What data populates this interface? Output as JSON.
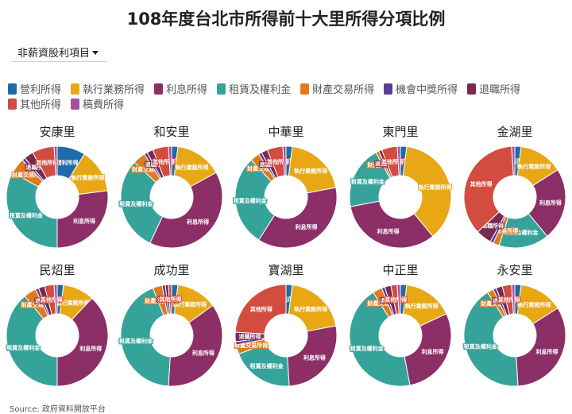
{
  "page": {
    "title": "108年度台北市所得前十大里所得分項比例",
    "dropdown_label": "非薪資股利項目",
    "dropdown_icon": "caret-down-icon",
    "source": "Source: 政府資料開放平台"
  },
  "categories": [
    {
      "name": "營利所得",
      "color": "#1e6ba8"
    },
    {
      "name": "執行業務所得",
      "color": "#e8a816"
    },
    {
      "name": "利息所得",
      "color": "#8c2f66"
    },
    {
      "name": "租賃及權利金",
      "color": "#36a39a"
    },
    {
      "name": "財產交易所得",
      "color": "#e07a1c"
    },
    {
      "name": "機會中獎所得",
      "color": "#5b3d91"
    },
    {
      "name": "退職所得",
      "color": "#7a2a52"
    },
    {
      "name": "其他所得",
      "color": "#d24d3f"
    },
    {
      "name": "稿費所得",
      "color": "#a451a0"
    }
  ],
  "chart_data": [
    {
      "type": "pie",
      "title": "安康里",
      "categories": [
        "營利所得",
        "執行業務所得",
        "利息所得",
        "租賃及權利金",
        "財產交易所得",
        "機會中獎所得",
        "退職所得",
        "其他所得",
        "稿費所得"
      ],
      "values": [
        9,
        14,
        27,
        33,
        5,
        1,
        3,
        7,
        1
      ]
    },
    {
      "type": "pie",
      "title": "和安里",
      "categories": [
        "營利所得",
        "執行業務所得",
        "利息所得",
        "租賃及權利金",
        "財產交易所得",
        "機會中獎所得",
        "退職所得",
        "其他所得",
        "稿費所得"
      ],
      "values": [
        2,
        15,
        40,
        30,
        4,
        1,
        2,
        5,
        1
      ]
    },
    {
      "type": "pie",
      "title": "中華里",
      "categories": [
        "營利所得",
        "執行業務所得",
        "利息所得",
        "租賃及權利金",
        "財產交易所得",
        "機會中獎所得",
        "退職所得",
        "其他所得",
        "稿費所得"
      ],
      "values": [
        2,
        20,
        37,
        29,
        3,
        1,
        2,
        5,
        1
      ]
    },
    {
      "type": "pie",
      "title": "東門里",
      "categories": [
        "營利所得",
        "執行業務所得",
        "利息所得",
        "租賃及權利金",
        "財產交易所得",
        "機會中獎所得",
        "退職所得",
        "其他所得",
        "稿費所得"
      ],
      "values": [
        2,
        37,
        33,
        20,
        1,
        0,
        1,
        5,
        1
      ]
    },
    {
      "type": "pie",
      "title": "金湖里",
      "categories": [
        "營利所得",
        "執行業務所得",
        "利息所得",
        "租賃及權利金",
        "財產交易所得",
        "機會中獎所得",
        "退職所得",
        "其他所得",
        "稿費所得"
      ],
      "values": [
        2,
        14,
        23,
        16,
        2,
        1,
        5,
        36,
        1
      ]
    },
    {
      "type": "pie",
      "title": "民炤里",
      "categories": [
        "營利所得",
        "執行業務所得",
        "利息所得",
        "租賃及權利金",
        "財產交易所得",
        "機會中獎所得",
        "退職所得",
        "其他所得",
        "稿費所得"
      ],
      "values": [
        2,
        10,
        38,
        39,
        4,
        1,
        2,
        3,
        1
      ]
    },
    {
      "type": "pie",
      "title": "成功里",
      "categories": [
        "營利所得",
        "執行業務所得",
        "利息所得",
        "租賃及權利金",
        "財產交易所得",
        "機會中獎所得",
        "退職所得",
        "其他所得",
        "稿費所得"
      ],
      "values": [
        2,
        13,
        36,
        43,
        3,
        1,
        1,
        1,
        0
      ]
    },
    {
      "type": "pie",
      "title": "寶湖里",
      "categories": [
        "營利所得",
        "執行業務所得",
        "利息所得",
        "租賃及權利金",
        "財產交易所得",
        "機會中獎所得",
        "退職所得",
        "其他所得",
        "稿費所得"
      ],
      "values": [
        2,
        20,
        27,
        20,
        3,
        1,
        3,
        24,
        0
      ]
    },
    {
      "type": "pie",
      "title": "中正里",
      "categories": [
        "營利所得",
        "執行業務所得",
        "利息所得",
        "租賃及權利金",
        "財產交易所得",
        "機會中獎所得",
        "退職所得",
        "其他所得",
        "稿費所得"
      ],
      "values": [
        2,
        16,
        29,
        44,
        3,
        1,
        2,
        2,
        1
      ]
    },
    {
      "type": "pie",
      "title": "永安里",
      "categories": [
        "營利所得",
        "執行業務所得",
        "利息所得",
        "租賃及權利金",
        "財產交易所得",
        "機會中獎所得",
        "退職所得",
        "其他所得",
        "稿費所得"
      ],
      "values": [
        2,
        14,
        33,
        42,
        2,
        1,
        2,
        3,
        1
      ]
    }
  ]
}
